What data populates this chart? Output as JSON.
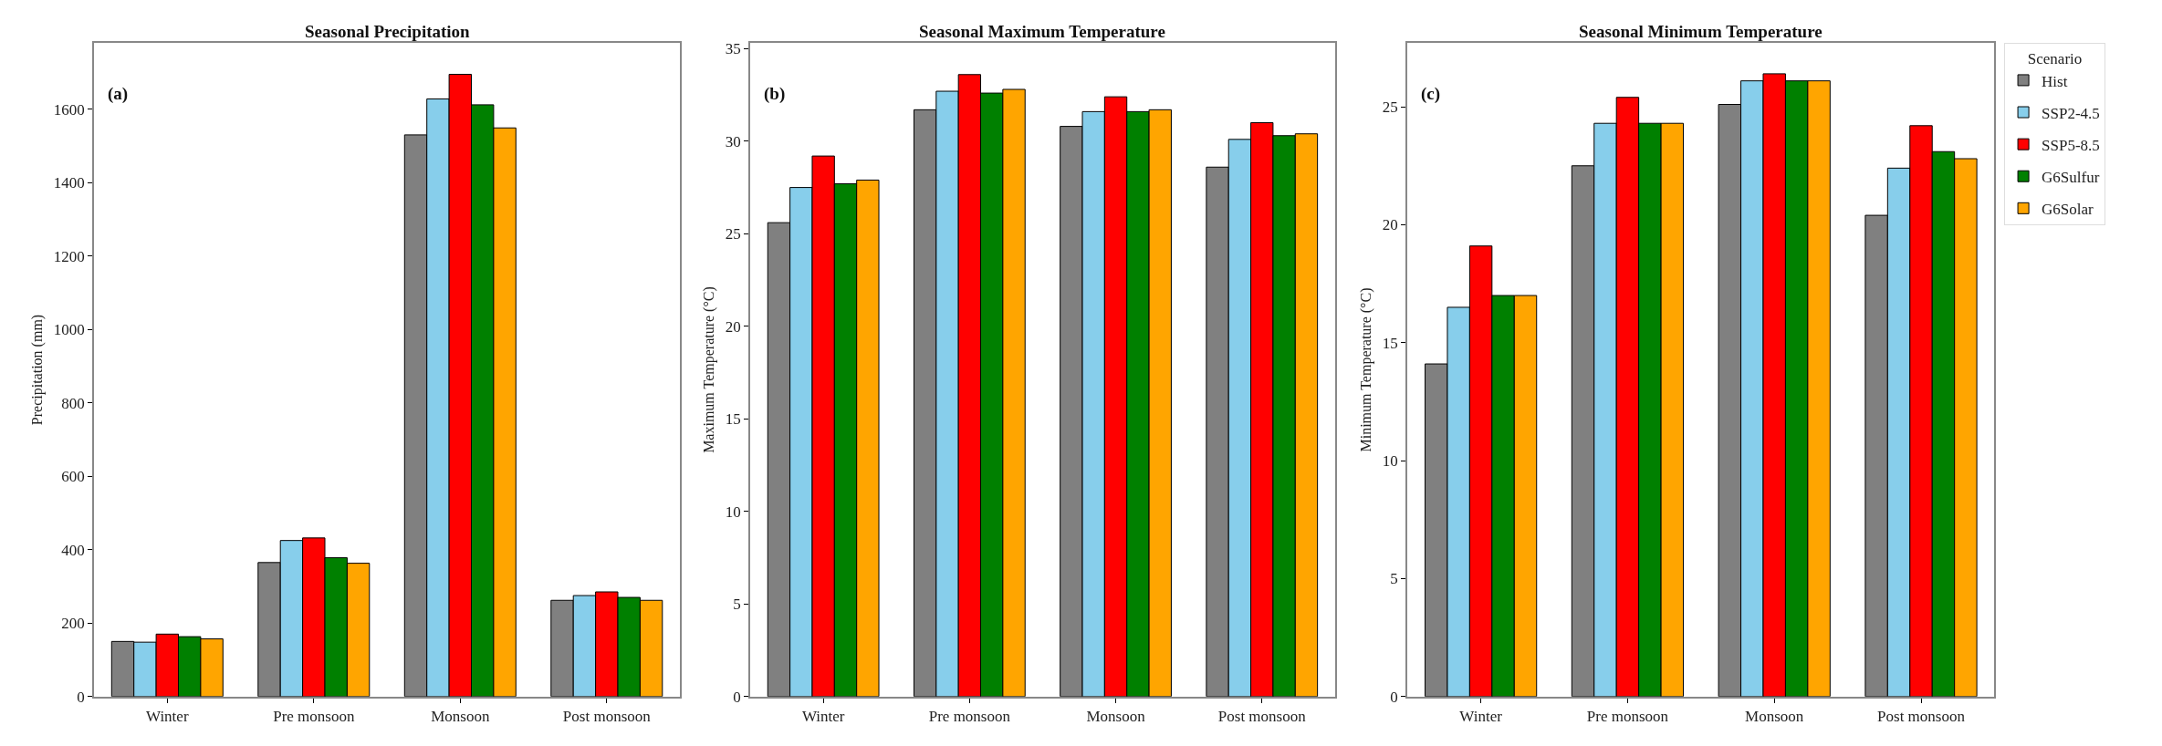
{
  "chart_data": [
    {
      "type": "bar",
      "title": "Seasonal Precipitation",
      "ylabel": "Precipitation (mm)",
      "annotations": [
        "(a)"
      ],
      "categories": [
        "Winter",
        "Pre monsoon",
        "Monsoon",
        "Post monsoon"
      ],
      "ylim": [
        0,
        1780
      ],
      "yticks": [
        0,
        200,
        400,
        600,
        800,
        1000,
        1200,
        1400,
        1600
      ],
      "series": [
        {
          "color": "#808080",
          "values": [
            150,
            365,
            1530,
            262
          ]
        },
        {
          "color": "#87ceeb",
          "values": [
            148,
            425,
            1628,
            275
          ]
        },
        {
          "color": "#ff0000",
          "values": [
            170,
            432,
            1695,
            285
          ]
        },
        {
          "color": "#008000",
          "values": [
            163,
            378,
            1612,
            270
          ]
        },
        {
          "color": "#ffa500",
          "values": [
            157,
            363,
            1549,
            262
          ]
        }
      ]
    },
    {
      "type": "bar",
      "title": "Seasonal Maximum Temperature",
      "ylabel": "Maximum Temperature (°C)",
      "annotations": [
        "(b)"
      ],
      "categories": [
        "Winter",
        "Pre monsoon",
        "Monsoon",
        "Post monsoon"
      ],
      "ylim": [
        0,
        35.3
      ],
      "yticks": [
        0,
        5,
        10,
        15,
        20,
        25,
        30,
        35
      ],
      "series": [
        {
          "color": "#808080",
          "values": [
            25.6,
            31.7,
            30.8,
            28.6
          ]
        },
        {
          "color": "#87ceeb",
          "values": [
            27.5,
            32.7,
            31.6,
            30.1
          ]
        },
        {
          "color": "#ff0000",
          "values": [
            29.2,
            33.6,
            32.4,
            31.0
          ]
        },
        {
          "color": "#008000",
          "values": [
            27.7,
            32.6,
            31.6,
            30.3
          ]
        },
        {
          "color": "#ffa500",
          "values": [
            27.9,
            32.8,
            31.7,
            30.4
          ]
        }
      ]
    },
    {
      "type": "bar",
      "title": "Seasonal Minimum Temperature",
      "ylabel": "Minimum Temperature (°C)",
      "annotations": [
        "(c)"
      ],
      "categories": [
        "Winter",
        "Pre monsoon",
        "Monsoon",
        "Post monsoon"
      ],
      "ylim": [
        0,
        27.7
      ],
      "yticks": [
        0,
        5,
        10,
        15,
        20,
        25
      ],
      "legend": "top right",
      "legend_title": "Scenario",
      "series": [
        {
          "name": "Hist",
          "color": "#808080",
          "values": [
            14.1,
            22.5,
            25.1,
            20.4
          ]
        },
        {
          "name": "SSP2-4.5",
          "color": "#87ceeb",
          "values": [
            16.5,
            24.3,
            26.1,
            22.4
          ]
        },
        {
          "name": "SSP5-8.5",
          "color": "#ff0000",
          "values": [
            19.1,
            25.4,
            26.4,
            24.2
          ]
        },
        {
          "name": "G6Sulfur",
          "color": "#008000",
          "values": [
            17.0,
            24.3,
            26.1,
            23.1
          ]
        },
        {
          "name": "G6Solar",
          "color": "#ffa500",
          "values": [
            17.0,
            24.3,
            26.1,
            22.8
          ]
        }
      ]
    }
  ]
}
